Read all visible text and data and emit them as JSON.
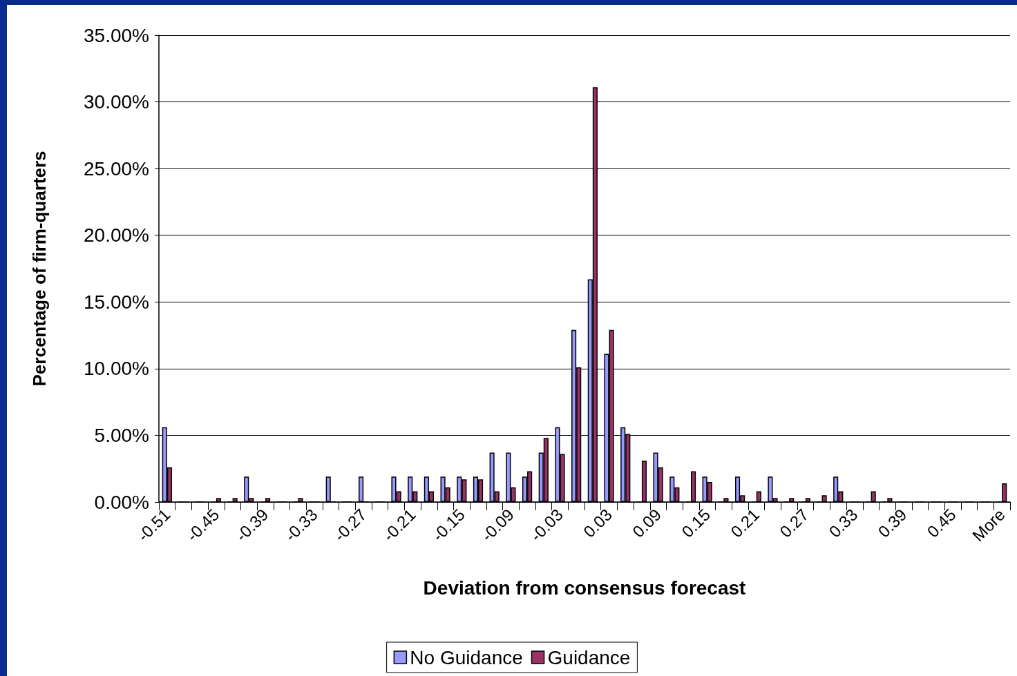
{
  "chart_data": {
    "type": "bar",
    "xlabel": "Deviation from consensus forecast",
    "ylabel": "Percentage of firm-quarters",
    "categories": [
      "-0.51",
      null,
      null,
      "-0.45",
      null,
      null,
      "-0.39",
      null,
      null,
      "-0.33",
      null,
      null,
      "-0.27",
      null,
      null,
      "-0.21",
      null,
      null,
      "-0.15",
      null,
      null,
      "-0.09",
      null,
      null,
      "-0.03",
      null,
      null,
      "0.03",
      null,
      null,
      "0.09",
      null,
      null,
      "0.15",
      null,
      null,
      "0.21",
      null,
      null,
      "0.27",
      null,
      null,
      "0.33",
      null,
      null,
      "0.39",
      null,
      null,
      "0.45",
      null,
      null,
      "More"
    ],
    "series": [
      {
        "name": "No Guidance",
        "color": "#9999ff",
        "values": [
          5.6,
          0,
          0,
          0,
          0,
          1.9,
          0,
          0,
          0,
          0,
          1.9,
          0,
          1.9,
          0,
          1.9,
          1.9,
          1.9,
          1.9,
          1.9,
          1.9,
          3.7,
          3.7,
          1.9,
          3.7,
          5.6,
          12.9,
          16.7,
          11.1,
          5.6,
          0,
          3.7,
          1.9,
          0,
          1.9,
          0,
          1.9,
          0,
          1.9,
          0,
          0,
          0,
          1.9,
          0,
          0,
          0,
          0,
          0,
          0,
          0,
          0,
          0,
          0
        ]
      },
      {
        "name": "Guidance",
        "color": "#993366",
        "values": [
          2.6,
          0,
          0,
          0.3,
          0.3,
          0.3,
          0.3,
          0,
          0.3,
          0,
          0,
          0,
          0,
          0,
          0.8,
          0.8,
          0.8,
          1.1,
          1.7,
          1.7,
          0.8,
          1.1,
          2.3,
          4.8,
          3.6,
          10.1,
          31.1,
          12.9,
          5.1,
          3.1,
          2.6,
          1.1,
          2.3,
          1.5,
          0.3,
          0.5,
          0.8,
          0.3,
          0.3,
          0.3,
          0.5,
          0.8,
          0,
          0.8,
          0.3,
          0,
          0,
          0,
          0,
          0,
          0,
          1.4
        ]
      }
    ],
    "ylim": [
      0,
      35
    ],
    "yticks": [
      {
        "value": 0,
        "label": "0.00%"
      },
      {
        "value": 5,
        "label": "5.00%"
      },
      {
        "value": 10,
        "label": "10.00%"
      },
      {
        "value": 15,
        "label": "15.00%"
      },
      {
        "value": 20,
        "label": "20.00%"
      },
      {
        "value": 25,
        "label": "25.00%"
      },
      {
        "value": 30,
        "label": "30.00%"
      },
      {
        "value": 35,
        "label": "35.00%"
      }
    ],
    "grid": "y",
    "legend": "bottom"
  }
}
